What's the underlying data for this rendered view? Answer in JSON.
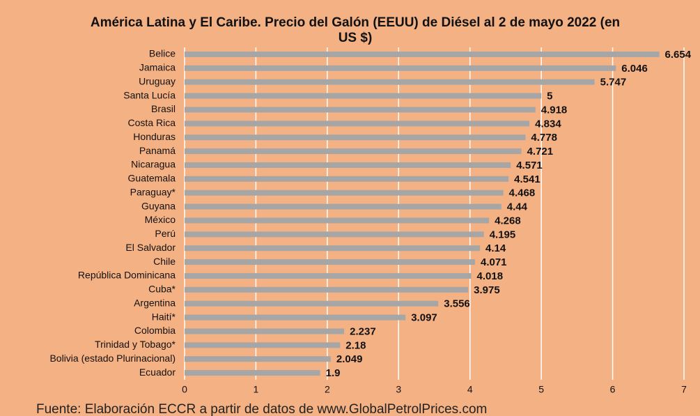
{
  "chart_data": {
    "type": "barh",
    "title": "América Latina y El Caribe. Precio del Galón (EEUU) de Diésel al 2 de mayo 2022 (en US $)",
    "categories": [
      "Belice",
      "Jamaica",
      "Uruguay",
      "Santa Lucía",
      "Brasil",
      "Costa Rica",
      "Honduras",
      "Panamá",
      "Nicaragua",
      "Guatemala",
      "Paraguay*",
      "Guyana",
      "México",
      "Perú",
      "El Salvador",
      "Chile",
      "República Dominicana",
      "Cuba*",
      "Argentina",
      "Haití*",
      "Colombia",
      "Trinidad y Tobago*",
      "Bolivia (estado Plurinacional)",
      "Ecuador"
    ],
    "values": [
      6.654,
      6.046,
      5.747,
      5,
      4.918,
      4.834,
      4.778,
      4.721,
      4.571,
      4.541,
      4.468,
      4.44,
      4.268,
      4.195,
      4.14,
      4.071,
      4.018,
      3.975,
      3.556,
      3.097,
      2.237,
      2.18,
      2.049,
      1.9
    ],
    "color": "#a6a6a6",
    "xlim": [
      0,
      7
    ],
    "xticks": [
      0,
      1,
      2,
      3,
      4,
      5,
      6,
      7
    ],
    "grid": true,
    "source": "Fuente: Elaboración ECCR a partir de datos de www.GlobalPetrolPrices.com"
  }
}
